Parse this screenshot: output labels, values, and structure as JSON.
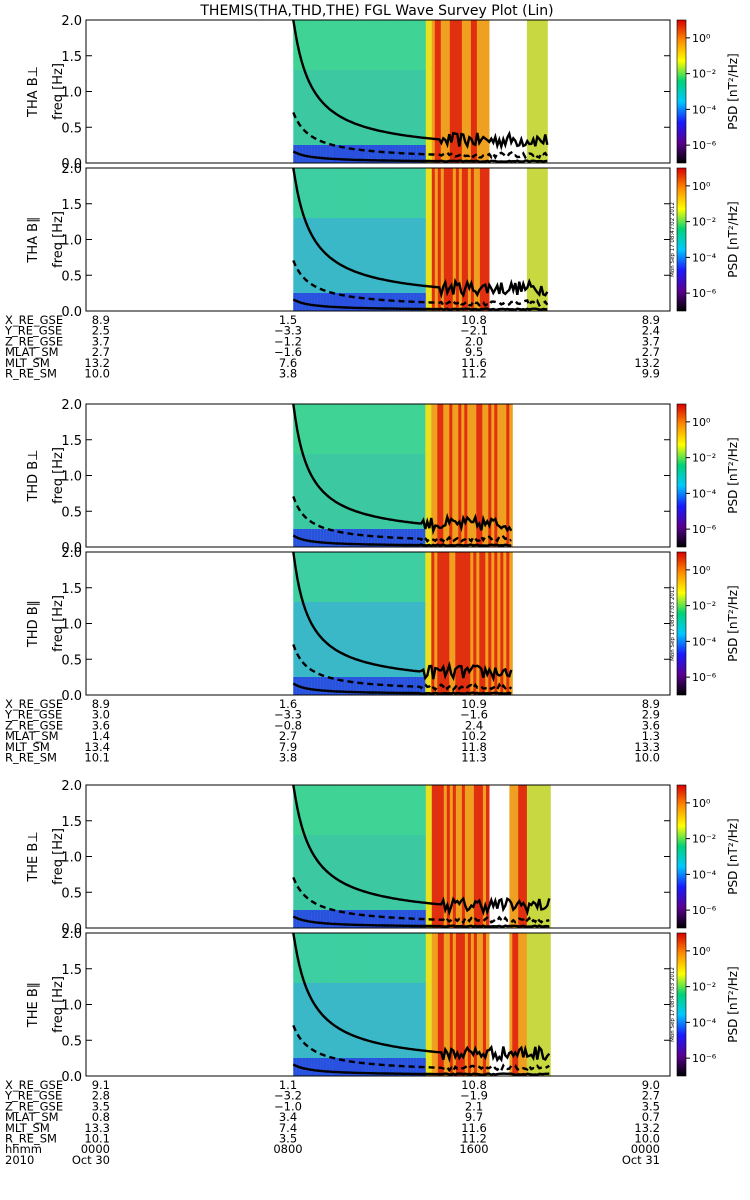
{
  "chart_data": {
    "type": "heatmap",
    "title": "THEMIS(THA,THD,THE) FGL Wave Survey Plot (Lin)",
    "ytick_labels": [
      "0.0",
      "0.5",
      "1.0",
      "1.5",
      "2.0"
    ],
    "ylim": [
      0,
      2.0
    ],
    "colorbar": {
      "label": "PSD [nT²/Hz]",
      "tick_labels": [
        "10⁰",
        "10⁻²",
        "10⁻⁴",
        "10⁻⁶"
      ],
      "scale": "log",
      "range_exponent": [
        -7,
        1
      ],
      "colors": [
        "#000000",
        "#5a0090",
        "#1a1aff",
        "#00c8ff",
        "#00d278",
        "#ffff00",
        "#ff8c00",
        "#d80000"
      ]
    },
    "stamps": [
      "Mon Sep 17 08:47:02 2012",
      "Mon Sep 17 08:47:03 2012"
    ],
    "probes": [
      {
        "panels": [
          {
            "label": "THA B⊥",
            "stamp": -1
          },
          {
            "label": "THA B∥",
            "stamp": 0
          }
        ],
        "coverage": [
          [
            0.355,
            0.69
          ],
          [
            0.755,
            0.79
          ]
        ],
        "rows": [
          {
            "name": "X_RE_GSE",
            "values": [
              "8.9",
              "1.5",
              "10.8",
              "8.9"
            ]
          },
          {
            "name": "Y_RE_GSE",
            "values": [
              "2.5",
              "−3.3",
              "−2.1",
              "2.4"
            ]
          },
          {
            "name": "Z_RE_GSE",
            "values": [
              "3.7",
              "−1.2",
              "2.0",
              "3.7"
            ]
          },
          {
            "name": "MLAT_SM",
            "values": [
              "2.7",
              "−1.6",
              "9.5",
              "2.7"
            ]
          },
          {
            "name": "MLT_SM",
            "values": [
              "13.2",
              "7.6",
              "11.6",
              "13.2"
            ]
          },
          {
            "name": "R_RE_SM",
            "values": [
              "10.0",
              "3.8",
              "11.2",
              "9.9"
            ]
          }
        ]
      },
      {
        "panels": [
          {
            "label": "THD B⊥",
            "stamp": -1
          },
          {
            "label": "THD B∥",
            "stamp": 1
          }
        ],
        "coverage": [
          [
            0.355,
            0.73
          ]
        ],
        "rows": [
          {
            "name": "X_RE_GSE",
            "values": [
              "8.9",
              "1.6",
              "10.9",
              "8.9"
            ]
          },
          {
            "name": "Y_RE_GSE",
            "values": [
              "3.0",
              "−3.3",
              "−1.6",
              "2.9"
            ]
          },
          {
            "name": "Z_RE_GSE",
            "values": [
              "3.6",
              "−0.8",
              "2.4",
              "3.6"
            ]
          },
          {
            "name": "MLAT_SM",
            "values": [
              "1.4",
              "2.7",
              "10.2",
              "1.3"
            ]
          },
          {
            "name": "MLT_SM",
            "values": [
              "13.4",
              "7.9",
              "11.8",
              "13.3"
            ]
          },
          {
            "name": "R_RE_SM",
            "values": [
              "10.1",
              "3.8",
              "11.3",
              "10.0"
            ]
          }
        ]
      },
      {
        "panels": [
          {
            "label": "THE B⊥",
            "stamp": -1
          },
          {
            "label": "THE B∥",
            "stamp": 1
          }
        ],
        "coverage": [
          [
            0.355,
            0.69
          ],
          [
            0.725,
            0.795
          ]
        ],
        "rows": [
          {
            "name": "X_RE_GSE",
            "values": [
              "9.1",
              "1.1",
              "10.8",
              "9.0"
            ]
          },
          {
            "name": "Y_RE_GSE",
            "values": [
              "2.8",
              "−3.2",
              "−1.9",
              "2.7"
            ]
          },
          {
            "name": "Z_RE_GSE",
            "values": [
              "3.5",
              "−1.0",
              "2.1",
              "3.5"
            ]
          },
          {
            "name": "MLAT_SM",
            "values": [
              "0.8",
              "3.4",
              "9.7",
              "0.7"
            ]
          },
          {
            "name": "MLT_SM",
            "values": [
              "13.3",
              "7.4",
              "11.6",
              "13.2"
            ]
          },
          {
            "name": "R_RE_SM",
            "values": [
              "10.1",
              "3.5",
              "11.2",
              "10.0"
            ]
          },
          {
            "name": "hhmm",
            "values": [
              "0000",
              "0800",
              "1600",
              "0000"
            ]
          },
          {
            "name": "2010",
            "values": [
              "Oct 30",
              "",
              "",
              "Oct 31"
            ]
          }
        ]
      }
    ]
  }
}
